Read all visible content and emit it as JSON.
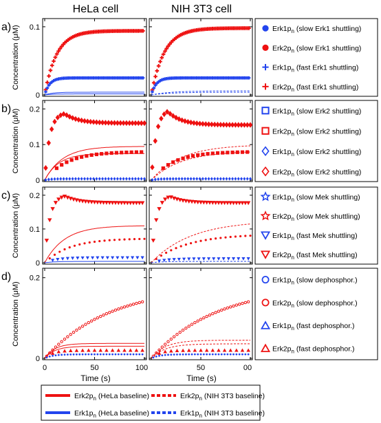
{
  "colors": {
    "red": "#ee1111",
    "blue": "#2244ee"
  },
  "column_titles": [
    "HeLa cell",
    "NIH 3T3 cell"
  ],
  "ylabel": "Concentration (μM)",
  "xlabel": "Time (s)",
  "x_ticks": [
    "0",
    "50",
    "100"
  ],
  "x_ticks_right": [
    "50",
    "00"
  ],
  "panels": [
    {
      "label": "a)",
      "yticks": [
        {
          "v": 0.1,
          "t": "0.1"
        },
        {
          "v": 0,
          "t": "0"
        }
      ],
      "legend": [
        {
          "marker": "dot",
          "color": "blue",
          "main": "Erk1p",
          "sub": "n",
          "rest": "(slow Erk1 shuttling)"
        },
        {
          "marker": "dot",
          "color": "red",
          "main": "Erk2p",
          "sub": "n",
          "rest": "(slow Erk1 shuttling)"
        },
        {
          "marker": "plus",
          "color": "blue",
          "main": "Erk1p",
          "sub": "n",
          "rest": "(fast Erk1 shuttling)"
        },
        {
          "marker": "plus",
          "color": "red",
          "main": "Erk2p",
          "sub": "n",
          "rest": "(fast Erk1 shuttling)"
        }
      ]
    },
    {
      "label": "b)",
      "yticks": [
        {
          "v": 0.2,
          "t": "0.2"
        },
        {
          "v": 0.1,
          "t": "0.1"
        },
        {
          "v": 0,
          "t": "0"
        }
      ],
      "legend": [
        {
          "marker": "square",
          "color": "blue",
          "main": "Erk1p",
          "sub": "n",
          "rest": "(slow Erk2 shuttling)"
        },
        {
          "marker": "square",
          "color": "red",
          "main": "Erk2p",
          "sub": "n",
          "rest": "(slow Erk2 shuttling)"
        },
        {
          "marker": "diamond",
          "color": "blue",
          "main": "Erk1p",
          "sub": "n",
          "rest": "(slow Erk2 shuttling)"
        },
        {
          "marker": "diamond",
          "color": "red",
          "main": "Erk2p",
          "sub": "n",
          "rest": "(slow Erk2 shuttling)"
        }
      ]
    },
    {
      "label": "c)",
      "yticks": [
        {
          "v": 0.2,
          "t": "0.2"
        },
        {
          "v": 0.1,
          "t": "0.1"
        },
        {
          "v": 0,
          "t": "0"
        }
      ],
      "legend": [
        {
          "marker": "star",
          "color": "blue",
          "main": "Erk1p",
          "sub": "n",
          "rest": "(slow Mek shuttling)"
        },
        {
          "marker": "star",
          "color": "red",
          "main": "Erk2p",
          "sub": "n",
          "rest": "(slow Mek shuttling)"
        },
        {
          "marker": "trdown",
          "color": "blue",
          "main": "Erk1p",
          "sub": "n",
          "rest": "(fast Mek shuttling)"
        },
        {
          "marker": "trdown",
          "color": "red",
          "main": "Erk2p",
          "sub": "n",
          "rest": "(fast Mek shuttling)"
        }
      ]
    },
    {
      "label": "d)",
      "yticks": [
        {
          "v": 0.2,
          "t": "0.2"
        },
        {
          "v": 0,
          "t": "0"
        }
      ],
      "legend": [
        {
          "marker": "circle",
          "color": "blue",
          "main": "Erk1p",
          "sub": "n",
          "rest": "(slow dephosphor.)"
        },
        {
          "marker": "circle",
          "color": "red",
          "main": "Erk2p",
          "sub": "n",
          "rest": "(slow dephosphor.)"
        },
        {
          "marker": "trup",
          "color": "blue",
          "main": "Erk1p",
          "sub": "n",
          "rest": "(fast dephosphor.)"
        },
        {
          "marker": "trup",
          "color": "red",
          "main": "Erk2p",
          "sub": "n",
          "rest": "(fast dephosphor.)"
        }
      ]
    }
  ],
  "bottom_legend": [
    {
      "color": "red",
      "style": "solid",
      "main": "Erk2p",
      "sub": "n",
      "rest": "(HeLa baseline)"
    },
    {
      "color": "red",
      "style": "dashed",
      "main": "Erk2p",
      "sub": "n",
      "rest": "(NIH 3T3 baseline)"
    },
    {
      "color": "blue",
      "style": "solid",
      "main": "Erk1p",
      "sub": "n",
      "rest": "(HeLa baseline)"
    },
    {
      "color": "blue",
      "style": "dashed",
      "main": "Erk1p",
      "sub": "n",
      "rest": "(NIH 3T3 baseline)"
    }
  ],
  "chart_data": [
    {
      "type": "line",
      "panel": "a)",
      "x_range": [
        0,
        100
      ],
      "ylim": [
        0,
        0.11
      ],
      "series": [
        {
          "name": "Erk2pn (fast Erk1 shuttling)",
          "cell": "HeLa",
          "x": [
            0,
            5,
            10,
            20,
            30,
            50,
            70,
            100
          ],
          "y": [
            0,
            0.045,
            0.062,
            0.076,
            0.083,
            0.089,
            0.092,
            0.094
          ]
        },
        {
          "name": "Erk1pn (slow Erk1 shuttling)",
          "cell": "HeLa",
          "x": [
            0,
            5,
            10,
            20,
            50,
            100
          ],
          "y": [
            0,
            0.015,
            0.021,
            0.024,
            0.025,
            0.025
          ]
        },
        {
          "name": "Erk2pn (fast Erk1 shuttling)",
          "cell": "NIH 3T3",
          "x": [
            0,
            5,
            10,
            20,
            30,
            50,
            70,
            100
          ],
          "y": [
            0,
            0.045,
            0.062,
            0.077,
            0.085,
            0.092,
            0.096,
            0.098
          ]
        },
        {
          "name": "Erk1pn (slow Erk1 shuttling)",
          "cell": "NIH 3T3",
          "x": [
            0,
            5,
            10,
            20,
            50,
            100
          ],
          "y": [
            0,
            0.015,
            0.021,
            0.024,
            0.025,
            0.025
          ]
        }
      ]
    },
    {
      "type": "line",
      "panel": "b)",
      "x_range": [
        0,
        100
      ],
      "ylim": [
        0,
        0.22
      ],
      "series": [
        {
          "name": "Erk2pn (slow Erk2 shuttling)",
          "cell": "HeLa",
          "x": [
            0,
            5,
            10,
            15,
            20,
            25,
            30,
            50,
            70,
            100
          ],
          "y": [
            0,
            0.1,
            0.17,
            0.19,
            0.19,
            0.185,
            0.178,
            0.166,
            0.162,
            0.16
          ]
        },
        {
          "name": "Erk2pn (slow Erk2 shuttling)",
          "cell": "NIH 3T3",
          "x": [
            0,
            5,
            10,
            15,
            20,
            25,
            30,
            50,
            70,
            100
          ],
          "y": [
            0,
            0.11,
            0.18,
            0.2,
            0.2,
            0.19,
            0.18,
            0.163,
            0.157,
            0.155
          ]
        }
      ]
    },
    {
      "type": "line",
      "panel": "c)",
      "x_range": [
        0,
        100
      ],
      "ylim": [
        0,
        0.22
      ],
      "series": [
        {
          "name": "Erk2pn (fast Mek shuttling)",
          "cell": "HeLa",
          "x": [
            0,
            5,
            10,
            15,
            20,
            25,
            30,
            50,
            70,
            100
          ],
          "y": [
            0,
            0.1,
            0.18,
            0.2,
            0.2,
            0.195,
            0.188,
            0.18,
            0.178,
            0.177
          ]
        },
        {
          "name": "Erk2pn (fast Mek shuttling)",
          "cell": "NIH 3T3",
          "x": [
            0,
            5,
            10,
            15,
            20,
            25,
            30,
            50,
            70,
            100
          ],
          "y": [
            0,
            0.1,
            0.18,
            0.2,
            0.2,
            0.195,
            0.188,
            0.18,
            0.178,
            0.177
          ]
        }
      ]
    },
    {
      "type": "line",
      "panel": "d)",
      "x_range": [
        0,
        100
      ],
      "ylim": [
        0,
        0.22
      ],
      "series": [
        {
          "name": "Erk2pn (slow dephosphor.)",
          "cell": "HeLa",
          "x": [
            0,
            10,
            20,
            30,
            50,
            70,
            100
          ],
          "y": [
            0,
            0.025,
            0.05,
            0.072,
            0.105,
            0.13,
            0.15
          ]
        },
        {
          "name": "Erk2pn (slow dephosphor.)",
          "cell": "NIH 3T3",
          "x": [
            0,
            10,
            20,
            30,
            50,
            70,
            100
          ],
          "y": [
            0,
            0.025,
            0.05,
            0.072,
            0.105,
            0.13,
            0.15
          ]
        }
      ]
    }
  ]
}
